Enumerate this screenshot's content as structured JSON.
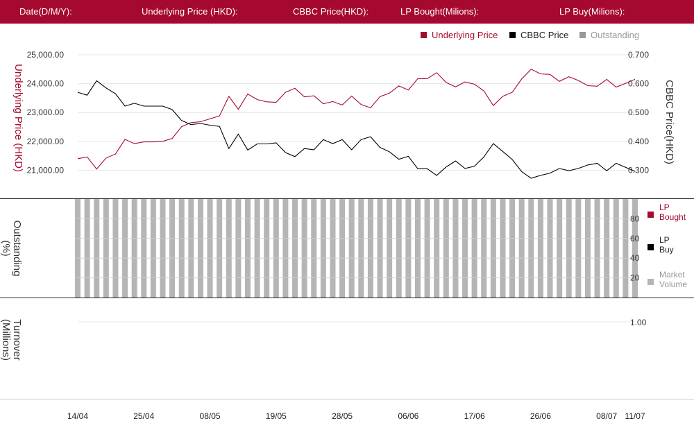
{
  "header": {
    "date_label": "Date(D/M/Y):",
    "underlying_label": "Underlying Price (HKD):",
    "cbbc_label": "CBBC Price(HKD):",
    "lp_bought_label": "LP Bought(Milions):",
    "lp_buy_label": "LP Buy(Milions):"
  },
  "colors": {
    "accent": "#a6092f",
    "underlying": "#a6092f",
    "cbbc": "#000000",
    "outstanding": "#b5b5b5"
  },
  "chart_data": [
    {
      "type": "line",
      "legend": [
        {
          "label": "Underlying Price",
          "color": "#a6092f"
        },
        {
          "label": "CBBC Price",
          "color": "#000000"
        },
        {
          "label": "Outstanding",
          "color": "#999999"
        }
      ],
      "ylabel": "Underlying Price (HKD)",
      "y2label": "CBBC Price(HKD)",
      "ylim": [
        20000,
        25000
      ],
      "y2lim": [
        0.2,
        0.7
      ],
      "yticks": [
        "21,000.00",
        "22,000.00",
        "23,000.00",
        "24,000.00",
        "25,000.00"
      ],
      "y2ticks": [
        "0.300",
        "0.400",
        "0.500",
        "0.600",
        "0.700"
      ],
      "series": [
        {
          "name": "Underlying Price",
          "values": [
            21400,
            21460,
            21040,
            21420,
            21560,
            22070,
            21920,
            21980,
            21980,
            22000,
            22100,
            22510,
            22650,
            22680,
            22780,
            22880,
            23560,
            23110,
            23640,
            23450,
            23370,
            23350,
            23700,
            23840,
            23540,
            23580,
            23300,
            23380,
            23260,
            23570,
            23280,
            23160,
            23550,
            23670,
            23920,
            23780,
            24170,
            24170,
            24380,
            24040,
            23890,
            24060,
            23980,
            23750,
            23240,
            23560,
            23700,
            24160,
            24500,
            24340,
            24320,
            24080,
            24240,
            24110,
            23930,
            23910,
            24150,
            23880,
            24010,
            24150
          ]
        },
        {
          "name": "CBBC Price",
          "values": [
            0.57,
            0.56,
            0.61,
            0.585,
            0.565,
            0.522,
            0.532,
            0.522,
            0.522,
            0.522,
            0.51,
            0.472,
            0.458,
            0.462,
            0.456,
            0.452,
            0.375,
            0.425,
            0.37,
            0.391,
            0.391,
            0.395,
            0.361,
            0.347,
            0.375,
            0.371,
            0.406,
            0.392,
            0.406,
            0.371,
            0.406,
            0.416,
            0.379,
            0.364,
            0.338,
            0.348,
            0.305,
            0.305,
            0.282,
            0.311,
            0.332,
            0.306,
            0.314,
            0.346,
            0.392,
            0.365,
            0.337,
            0.295,
            0.272,
            0.282,
            0.29,
            0.306,
            0.298,
            0.306,
            0.318,
            0.324,
            0.298,
            0.324,
            0.31,
            0.296
          ]
        }
      ]
    },
    {
      "type": "bar",
      "ylabel": "Outstanding (%)",
      "yticks": [
        "20",
        "40",
        "60",
        "80"
      ],
      "ylim": [
        0,
        100
      ],
      "series": [
        {
          "name": "Outstanding",
          "values": [
            100,
            100,
            100,
            100,
            100,
            100,
            100,
            100,
            100,
            100,
            100,
            100,
            100,
            100,
            100,
            100,
            100,
            100,
            100,
            100,
            100,
            100,
            100,
            100,
            100,
            100,
            100,
            100,
            100,
            100,
            100,
            100,
            100,
            100,
            100,
            100,
            100,
            100,
            100,
            100,
            100,
            100,
            100,
            100,
            100,
            100,
            100,
            100,
            100,
            100,
            100,
            100,
            100,
            100,
            100,
            100,
            100,
            100,
            100,
            100
          ]
        }
      ],
      "legend": [
        {
          "label": "LP Bought",
          "color": "#a6092f"
        },
        {
          "label": "LP Buy",
          "color": "#000000"
        },
        {
          "label": "Market Volume",
          "color": "#b5b5b5"
        }
      ]
    },
    {
      "type": "bar",
      "ylabel": "Turnover (Millions)",
      "yticks": [
        "1.00"
      ],
      "series": []
    }
  ],
  "xaxis": {
    "labels": [
      "14/04",
      "25/04",
      "08/05",
      "19/05",
      "28/05",
      "06/06",
      "17/06",
      "26/06",
      "08/07",
      "11/07"
    ],
    "label_index": [
      0,
      7,
      14,
      21,
      28,
      35,
      42,
      49,
      56,
      59
    ]
  }
}
